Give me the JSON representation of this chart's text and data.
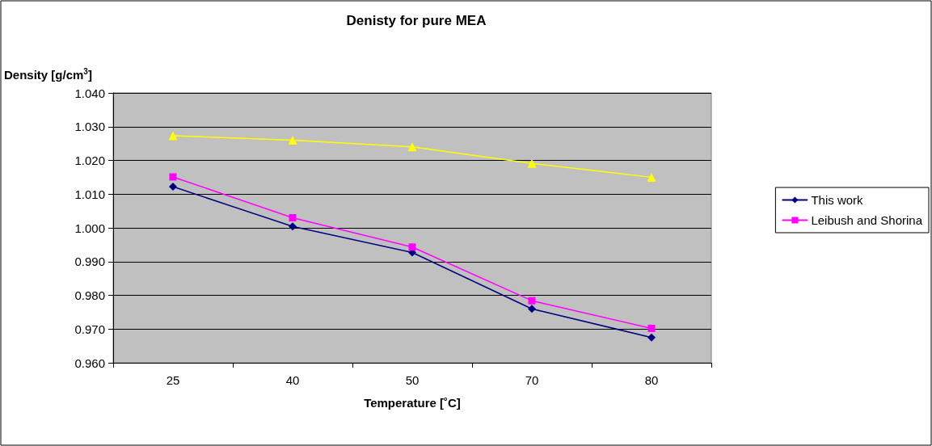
{
  "chart_data": {
    "type": "line",
    "title": "Denisty for pure MEA",
    "xlabel": "Temperature [˚C]",
    "ylabel": "Density [g/cm$^{3}$]",
    "categories": [
      "25",
      "40",
      "50",
      "70",
      "80"
    ],
    "series": [
      {
        "name": "This work",
        "color": "#000080",
        "marker": "diamond",
        "values": [
          1.0122,
          1.0004,
          0.9927,
          0.976,
          0.9675
        ]
      },
      {
        "name": "Leibush and Shorina",
        "color": "#ff00ff",
        "marker": "square",
        "values": [
          1.0151,
          1.003,
          0.9943,
          0.9784,
          0.9702
        ]
      },
      {
        "color": "#ffff00",
        "marker": "triangle",
        "values": [
          1.0273,
          1.026,
          1.024,
          1.0191,
          1.015
        ]
      }
    ],
    "ylim": [
      0.96,
      1.04
    ],
    "yticks": [
      {
        "value": 0.96,
        "label": "0.960"
      },
      {
        "value": 0.97,
        "label": "0.970"
      },
      {
        "value": 0.98,
        "label": "0.980"
      },
      {
        "value": 0.99,
        "label": "0.990"
      },
      {
        "value": 1.0,
        "label": "1.000"
      },
      {
        "value": 1.01,
        "label": "1.010"
      },
      {
        "value": 1.02,
        "label": "1.020"
      },
      {
        "value": 1.03,
        "label": "1.030"
      },
      {
        "value": 1.04,
        "label": "1.040"
      }
    ],
    "grid": "y",
    "legend": "right",
    "line_style": "solid"
  }
}
